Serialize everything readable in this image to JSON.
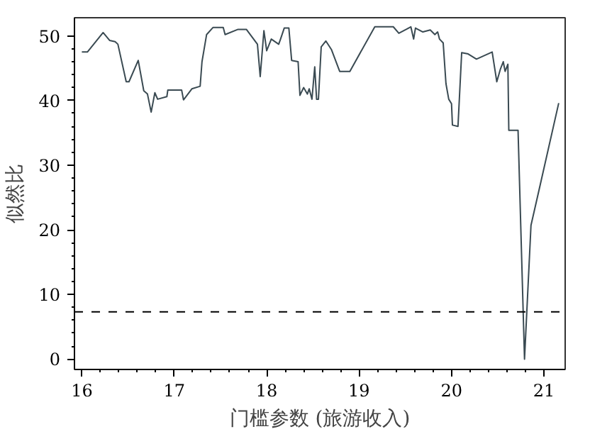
{
  "chart_data": {
    "type": "line",
    "xlabel": "门槛参数 (旅游收入)",
    "ylabel": "似然比",
    "x": [
      16.0,
      16.06,
      16.23,
      16.3,
      16.36,
      16.39,
      16.48,
      16.51,
      16.61,
      16.67,
      16.71,
      16.75,
      16.79,
      16.82,
      16.92,
      16.93,
      17.08,
      17.1,
      17.19,
      17.28,
      17.3,
      17.35,
      17.42,
      17.53,
      17.55,
      17.69,
      17.78,
      17.9,
      17.93,
      17.97,
      18.0,
      18.05,
      18.13,
      18.15,
      18.19,
      18.24,
      18.27,
      18.34,
      18.36,
      18.4,
      18.44,
      18.46,
      18.49,
      18.52,
      18.54,
      18.56,
      18.59,
      18.64,
      18.7,
      18.79,
      18.9,
      19.17,
      19.37,
      19.43,
      19.51,
      19.56,
      19.59,
      19.61,
      19.69,
      19.77,
      19.82,
      19.85,
      19.87,
      19.91,
      19.94,
      19.97,
      20.0,
      20.01,
      20.07,
      20.11,
      20.18,
      20.27,
      20.44,
      20.49,
      20.53,
      20.56,
      20.58,
      20.61,
      20.62,
      20.71,
      20.72,
      20.79,
      20.86,
      20.97,
      21.16
    ],
    "series": [
      {
        "color": "#3a4a52",
        "values": [
          47.5,
          47.5,
          50.5,
          49.3,
          49.1,
          48.7,
          42.9,
          42.9,
          46.2,
          41.5,
          41.0,
          38.2,
          41.2,
          40.2,
          40.6,
          41.6,
          41.6,
          40.1,
          41.8,
          42.2,
          46.0,
          50.2,
          51.3,
          51.3,
          50.2,
          51.0,
          51.0,
          48.7,
          43.7,
          50.8,
          47.7,
          49.5,
          48.7,
          49.5,
          51.2,
          51.2,
          46.2,
          46.0,
          40.8,
          42.0,
          41.0,
          41.8,
          40.2,
          45.2,
          40.2,
          40.2,
          48.3,
          49.2,
          47.9,
          44.5,
          44.5,
          51.4,
          51.4,
          50.4,
          51.0,
          51.4,
          49.5,
          51.2,
          50.6,
          50.9,
          50.2,
          50.6,
          49.5,
          48.9,
          42.6,
          40.2,
          39.5,
          36.2,
          36.0,
          47.4,
          47.2,
          46.4,
          47.5,
          42.9,
          44.9,
          46.0,
          44.5,
          45.6,
          35.4,
          35.4,
          35.4,
          0,
          20.7,
          27.6,
          39.6
        ]
      }
    ],
    "xlim": [
      15.92,
      21.23
    ],
    "ylim": [
      -1.6,
      52.8
    ],
    "xticks": [
      16,
      17,
      18,
      19,
      20,
      21
    ],
    "yticks": [
      0,
      10,
      20,
      30,
      40,
      50
    ],
    "ref_lines": [
      {
        "axis": "y",
        "value": 7.3,
        "line_style": "dashed",
        "color": "#000000"
      }
    ],
    "grid": false,
    "marker": "none",
    "line_style": "solid"
  }
}
